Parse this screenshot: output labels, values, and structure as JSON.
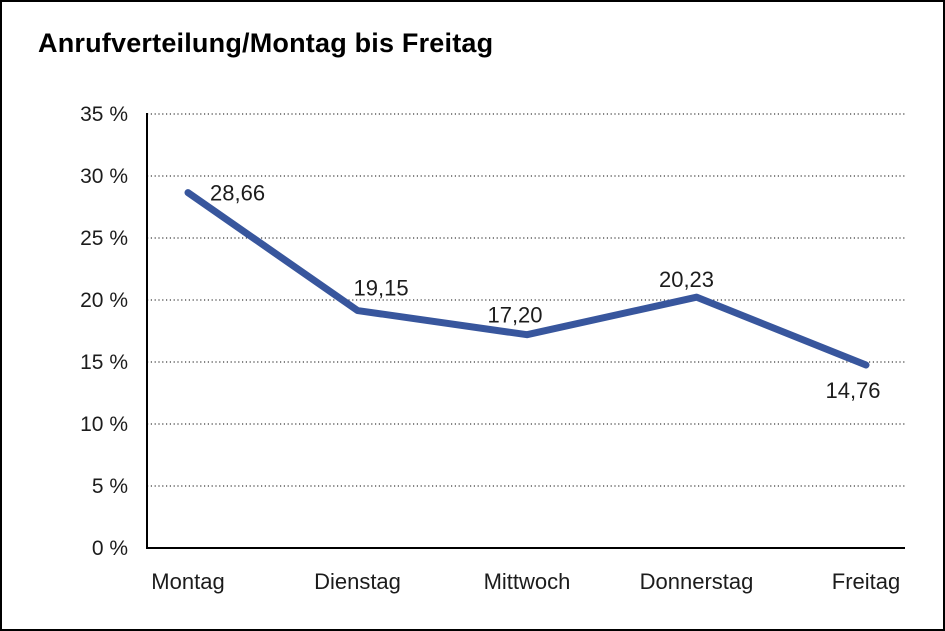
{
  "chart_data": {
    "type": "line",
    "title": "Anrufverteilung/Montag bis Freitag",
    "categories": [
      "Montag",
      "Dienstag",
      "Mittwoch",
      "Donnerstag",
      "Freitag"
    ],
    "values": [
      28.66,
      19.15,
      17.2,
      20.23,
      14.76
    ],
    "value_labels": [
      "28,66",
      "19,15",
      "17,20",
      "20,23",
      "14,76"
    ],
    "xlabel": "",
    "ylabel": "",
    "ylim": [
      0,
      35
    ],
    "y_ticks": [
      0,
      5,
      10,
      15,
      20,
      25,
      30,
      35
    ],
    "y_tick_labels": [
      "0 %",
      "5 %",
      "10 %",
      "15 %",
      "20 %",
      "25 %",
      "30 %",
      "35 %"
    ],
    "legend_position": "none",
    "grid": "horizontal-dotted",
    "line_color": "#38569D",
    "axis_color": "#000000",
    "grid_color": "#3c3c3c",
    "background_color": "#FFFFFF",
    "border_color": "#000000"
  }
}
